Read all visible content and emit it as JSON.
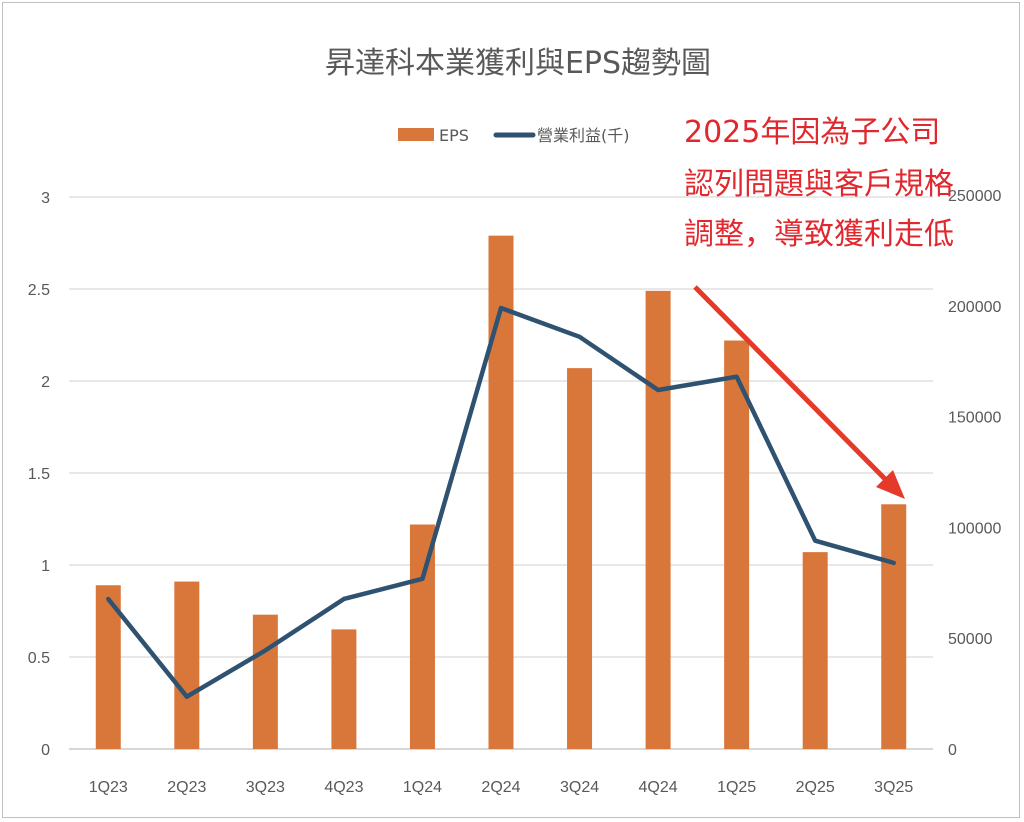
{
  "chart_data": {
    "type": "bar+line",
    "title": "昇達科本業獲利與EPS趨勢圖",
    "categories": [
      "1Q23",
      "2Q23",
      "3Q23",
      "4Q23",
      "1Q24",
      "2Q24",
      "3Q24",
      "4Q24",
      "1Q25",
      "2Q25",
      "3Q25"
    ],
    "series": [
      {
        "name": "EPS",
        "type": "bar",
        "axis": "left",
        "color": "#d9773b",
        "values": [
          0.89,
          0.91,
          0.73,
          0.65,
          1.22,
          2.79,
          2.07,
          2.49,
          2.22,
          1.07,
          1.33
        ]
      },
      {
        "name": "營業利益(千)",
        "type": "line",
        "axis": "right",
        "color": "#2f5270",
        "values": [
          67700,
          23600,
          44500,
          67700,
          76800,
          199000,
          186000,
          162000,
          168000,
          94000,
          84000
        ]
      }
    ],
    "left_axis": {
      "range": [
        0,
        3
      ],
      "ticks": [
        "0",
        "0.5",
        "1",
        "1.5",
        "2",
        "2.5",
        "3"
      ]
    },
    "right_axis": {
      "range": [
        0,
        250000
      ],
      "ticks": [
        "0",
        "50000",
        "100000",
        "150000",
        "200000",
        "250000"
      ]
    },
    "grid": true,
    "legend_position": "top",
    "annotation": {
      "lines": [
        "2025年因為子公司",
        "認列問題與客戶規格",
        "調整，導致獲利走低"
      ],
      "color": "#e0282e",
      "arrow": "pointing down-right from 4Q24 toward 3Q25"
    }
  }
}
